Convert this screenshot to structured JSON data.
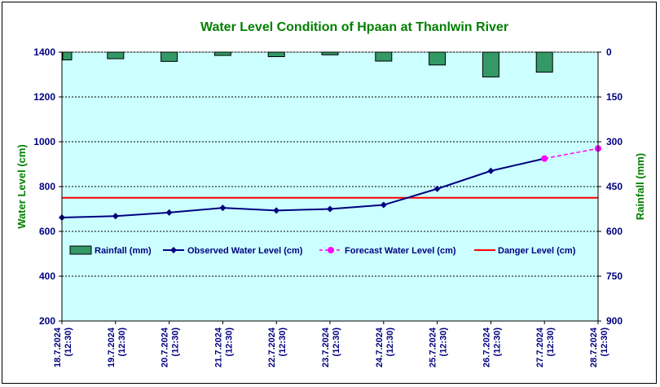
{
  "chart_data": {
    "type": "line",
    "title": "Water Level Condition of Hpaan at Thanlwin River",
    "ylabel": "Water Level (cm)",
    "y2label": "Rainfall (mm)",
    "ylim": [
      200,
      1400
    ],
    "yticks": [
      200,
      400,
      600,
      800,
      1000,
      1200,
      1400
    ],
    "y2lim": [
      0,
      900
    ],
    "y2ticks": [
      0,
      150,
      300,
      450,
      600,
      750,
      900
    ],
    "y2_inverted": true,
    "grid": "horizontal dashed",
    "legend_position": "middle-left",
    "categories": [
      [
        "18.7.2024",
        "(12:30)"
      ],
      [
        "19.7.2024",
        "(12:30)"
      ],
      [
        "20.7.2024",
        "(12:30)"
      ],
      [
        "21.7.2024",
        "(12:30)"
      ],
      [
        "22.7.2024",
        "(12:30)"
      ],
      [
        "23.7.2024",
        "(12:30)"
      ],
      [
        "24.7.2024",
        "(12:30)"
      ],
      [
        "25.7.2024",
        "(12:30)"
      ],
      [
        "26.7.2024",
        "(12:30)"
      ],
      [
        "27.7.2024",
        "(12:30)"
      ],
      [
        "28.7.2024",
        "(12:30)"
      ]
    ],
    "series": [
      {
        "name": "Rainfall (mm)",
        "kind": "bar",
        "axis": "y2",
        "color": "#339966",
        "values": [
          26,
          22,
          31,
          11,
          15,
          9,
          30,
          43,
          83,
          67,
          null
        ]
      },
      {
        "name": "Observed Water Level (cm)",
        "kind": "line",
        "axis": "y",
        "color": "#000080",
        "values": [
          662,
          668,
          684,
          705,
          693,
          700,
          718,
          790,
          870,
          925,
          null
        ]
      },
      {
        "name": "Forecast Water Level (cm)",
        "kind": "dashed-line",
        "axis": "y",
        "color": "#ff00ff",
        "values": [
          null,
          null,
          null,
          null,
          null,
          null,
          null,
          null,
          null,
          925,
          970
        ]
      },
      {
        "name": "Danger Level (cm)",
        "kind": "hline",
        "axis": "y",
        "color": "#ff0000",
        "value": 750
      }
    ]
  }
}
